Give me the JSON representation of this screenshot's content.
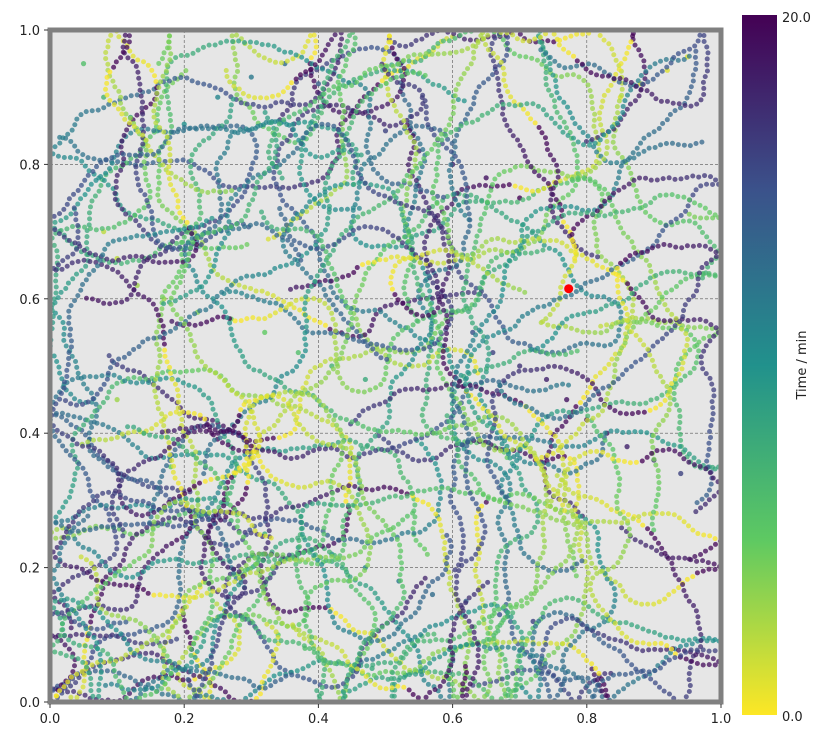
{
  "chart_data": {
    "type": "scatter",
    "title": "",
    "xlabel": "",
    "ylabel": "",
    "xlim": [
      0.0,
      1.0
    ],
    "ylim": [
      0.0,
      1.0
    ],
    "xticks": [
      "0.0",
      "0.2",
      "0.4",
      "0.6",
      "0.8",
      "1.0"
    ],
    "yticks": [
      "0.0",
      "0.2",
      "0.4",
      "0.6",
      "0.8",
      "1.0"
    ],
    "grid": true,
    "background_color": "#e6e6e6",
    "frame_color": "#808080",
    "colorbar": {
      "label": "Time / min",
      "min": 0.0,
      "max": 20.0,
      "min_label": "0.0",
      "max_label": "20.0",
      "colormap": "viridis",
      "colors_low_to_high": [
        "#fde725",
        "#5ec962",
        "#21918c",
        "#3b528b",
        "#440154"
      ]
    },
    "series": [
      {
        "description_of_points": "trajectories",
        "points": [
          [
            0.05,
            0.95,
            6
          ],
          [
            0.08,
            0.9,
            7
          ],
          [
            0.12,
            0.87,
            8
          ],
          [
            0.16,
            0.85,
            9
          ],
          [
            0.2,
            0.86,
            10
          ],
          [
            0.25,
            0.9,
            11
          ],
          [
            0.3,
            0.93,
            12
          ],
          [
            0.35,
            0.95,
            13
          ],
          [
            0.4,
            0.92,
            14
          ],
          [
            0.45,
            0.88,
            15
          ],
          [
            0.5,
            0.85,
            16
          ],
          [
            0.55,
            0.82,
            17
          ],
          [
            0.6,
            0.8,
            18
          ],
          [
            0.65,
            0.78,
            19
          ],
          [
            0.7,
            0.75,
            20
          ],
          [
            0.1,
            0.45,
            3
          ],
          [
            0.14,
            0.4,
            4
          ],
          [
            0.18,
            0.35,
            5
          ],
          [
            0.22,
            0.3,
            6
          ],
          [
            0.27,
            0.27,
            7
          ],
          [
            0.32,
            0.25,
            8
          ],
          [
            0.37,
            0.23,
            9
          ],
          [
            0.42,
            0.22,
            10
          ],
          [
            0.47,
            0.2,
            11
          ],
          [
            0.52,
            0.18,
            12
          ],
          [
            0.57,
            0.16,
            13
          ],
          [
            0.62,
            0.15,
            14
          ],
          [
            0.67,
            0.13,
            15
          ],
          [
            0.72,
            0.12,
            16
          ],
          [
            0.6,
            0.58,
            14
          ],
          [
            0.63,
            0.55,
            15
          ],
          [
            0.66,
            0.52,
            16
          ],
          [
            0.7,
            0.5,
            17
          ],
          [
            0.74,
            0.48,
            18
          ],
          [
            0.77,
            0.45,
            19
          ],
          [
            0.8,
            0.42,
            20
          ],
          [
            0.83,
            0.4,
            19
          ],
          [
            0.86,
            0.38,
            18
          ],
          [
            0.9,
            0.36,
            17
          ],
          [
            0.94,
            0.34,
            16
          ],
          [
            0.08,
            0.7,
            2
          ],
          [
            0.1,
            0.66,
            2
          ],
          [
            0.13,
            0.62,
            3
          ],
          [
            0.17,
            0.6,
            3
          ],
          [
            0.22,
            0.58,
            4
          ],
          [
            0.27,
            0.57,
            5
          ],
          [
            0.32,
            0.55,
            5
          ],
          [
            0.37,
            0.52,
            6
          ],
          [
            0.42,
            0.5,
            7
          ],
          [
            0.47,
            0.48,
            8
          ],
          [
            0.85,
            0.9,
            1
          ],
          [
            0.88,
            0.92,
            1
          ],
          [
            0.92,
            0.94,
            1
          ],
          [
            0.95,
            0.96,
            1
          ],
          [
            0.3,
            0.12,
            4
          ],
          [
            0.34,
            0.1,
            5
          ],
          [
            0.38,
            0.08,
            6
          ],
          [
            0.43,
            0.06,
            7
          ],
          [
            0.48,
            0.05,
            8
          ],
          [
            0.53,
            0.04,
            9
          ]
        ]
      }
    ],
    "highlight_point": {
      "x": 0.773,
      "y": 0.615,
      "color": "#ff0000"
    }
  }
}
